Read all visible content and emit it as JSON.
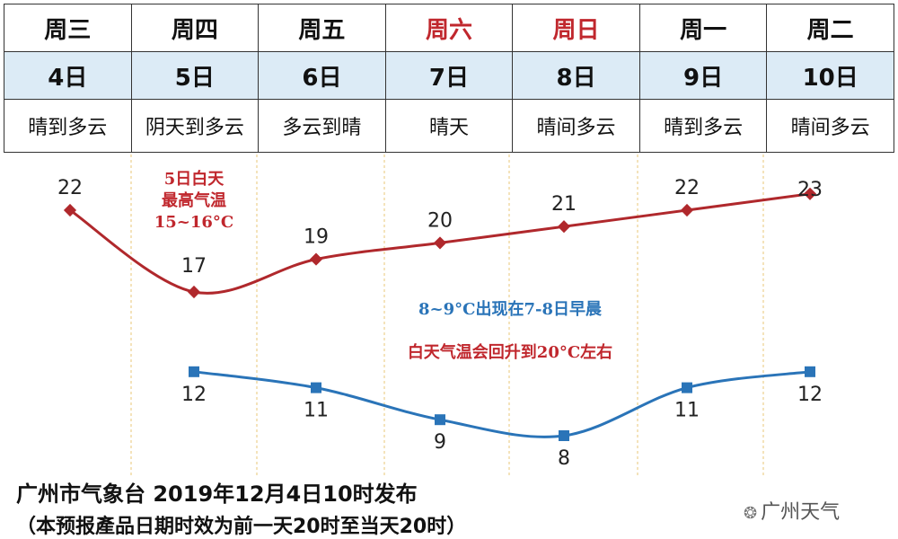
{
  "forecast_table": {
    "days": [
      {
        "weekday": "周三",
        "date": "4日",
        "weather": "晴到多云",
        "weekend": false
      },
      {
        "weekday": "周四",
        "date": "5日",
        "weather": "阴天到多云",
        "weekend": false
      },
      {
        "weekday": "周五",
        "date": "6日",
        "weather": "多云到晴",
        "weekend": false
      },
      {
        "weekday": "周六",
        "date": "7日",
        "weather": "晴天",
        "weekend": true
      },
      {
        "weekday": "周日",
        "date": "8日",
        "weather": "晴间多云",
        "weekend": true
      },
      {
        "weekday": "周一",
        "date": "9日",
        "weather": "晴到多云",
        "weekend": false
      },
      {
        "weekday": "周二",
        "date": "10日",
        "weather": "晴间多云",
        "weekend": false
      }
    ]
  },
  "chart_data": {
    "type": "line",
    "categories": [
      "4日",
      "5日",
      "6日",
      "7日",
      "8日",
      "9日",
      "10日"
    ],
    "series": [
      {
        "color": "#b0282c",
        "marker": "diamond",
        "values": [
          22,
          17,
          19,
          20,
          21,
          22,
          23
        ]
      },
      {
        "color": "#2a74b8",
        "marker": "square",
        "values": [
          null,
          12,
          11,
          9,
          8,
          11,
          12
        ]
      }
    ],
    "grid": "vertical dashed",
    "annotations": [
      {
        "lines": [
          "5日白天",
          "最高气温",
          "15~16°C"
        ],
        "color": "#c0272d"
      },
      {
        "lines": [
          "8~9°C出现在7-8日早晨"
        ],
        "color": "#2a74b8"
      },
      {
        "lines": [
          "白天气温会回升到20°C左右"
        ],
        "color": "#c0272d"
      }
    ]
  },
  "footer": {
    "issuer": "广州市气象台 2019年12月4日10时发布",
    "note": "（本预报產品日期时效为前一天20时至当天20时）"
  },
  "watermark": {
    "icon": "wechat-icon",
    "text": "广州天气"
  }
}
